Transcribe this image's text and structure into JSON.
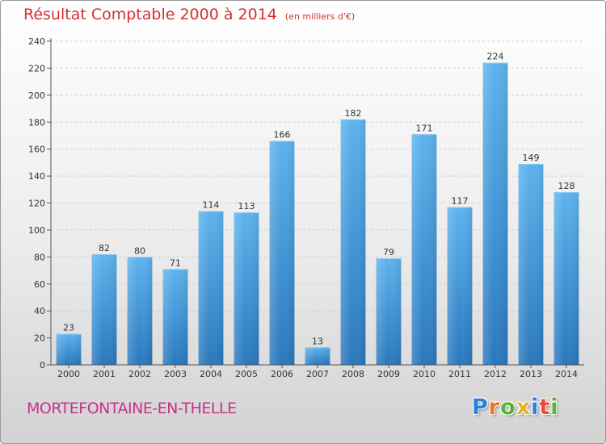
{
  "chart_data": {
    "type": "bar",
    "title": "Résultat Comptable 2000 à 2014",
    "subtitle": "(en milliers d'€)",
    "categories": [
      "2000",
      "2001",
      "2002",
      "2003",
      "2004",
      "2005",
      "2006",
      "2007",
      "2008",
      "2009",
      "2010",
      "2011",
      "2012",
      "2013",
      "2014"
    ],
    "values": [
      23,
      82,
      80,
      71,
      114,
      113,
      166,
      13,
      182,
      79,
      171,
      117,
      224,
      149,
      128
    ],
    "ylim": [
      0,
      240
    ],
    "yticks": [
      0,
      20,
      40,
      60,
      80,
      100,
      120,
      140,
      160,
      180,
      200,
      220,
      240
    ],
    "xlabel": "",
    "ylabel": "",
    "grid": true,
    "bar_color": "#4a9fe0"
  },
  "footer": {
    "city": "MORTEFONTAINE-EN-THELLE",
    "city_color": "#c8328c",
    "logo": "Proxiti",
    "logo_letters": [
      {
        "char": "P",
        "color": "#2f7fd6"
      },
      {
        "char": "r",
        "color": "#e8742a"
      },
      {
        "char": "o",
        "color": "#5bb33a"
      },
      {
        "char": "x",
        "color": "#e8b02a"
      },
      {
        "char": "i",
        "color": "#2f7fd6"
      },
      {
        "char": "t",
        "color": "#e84a3a"
      },
      {
        "char": "i",
        "color": "#5bb33a"
      }
    ]
  },
  "colors": {
    "title": "#d2322d",
    "axis": "#555555",
    "grid": "#cfcfcf"
  }
}
